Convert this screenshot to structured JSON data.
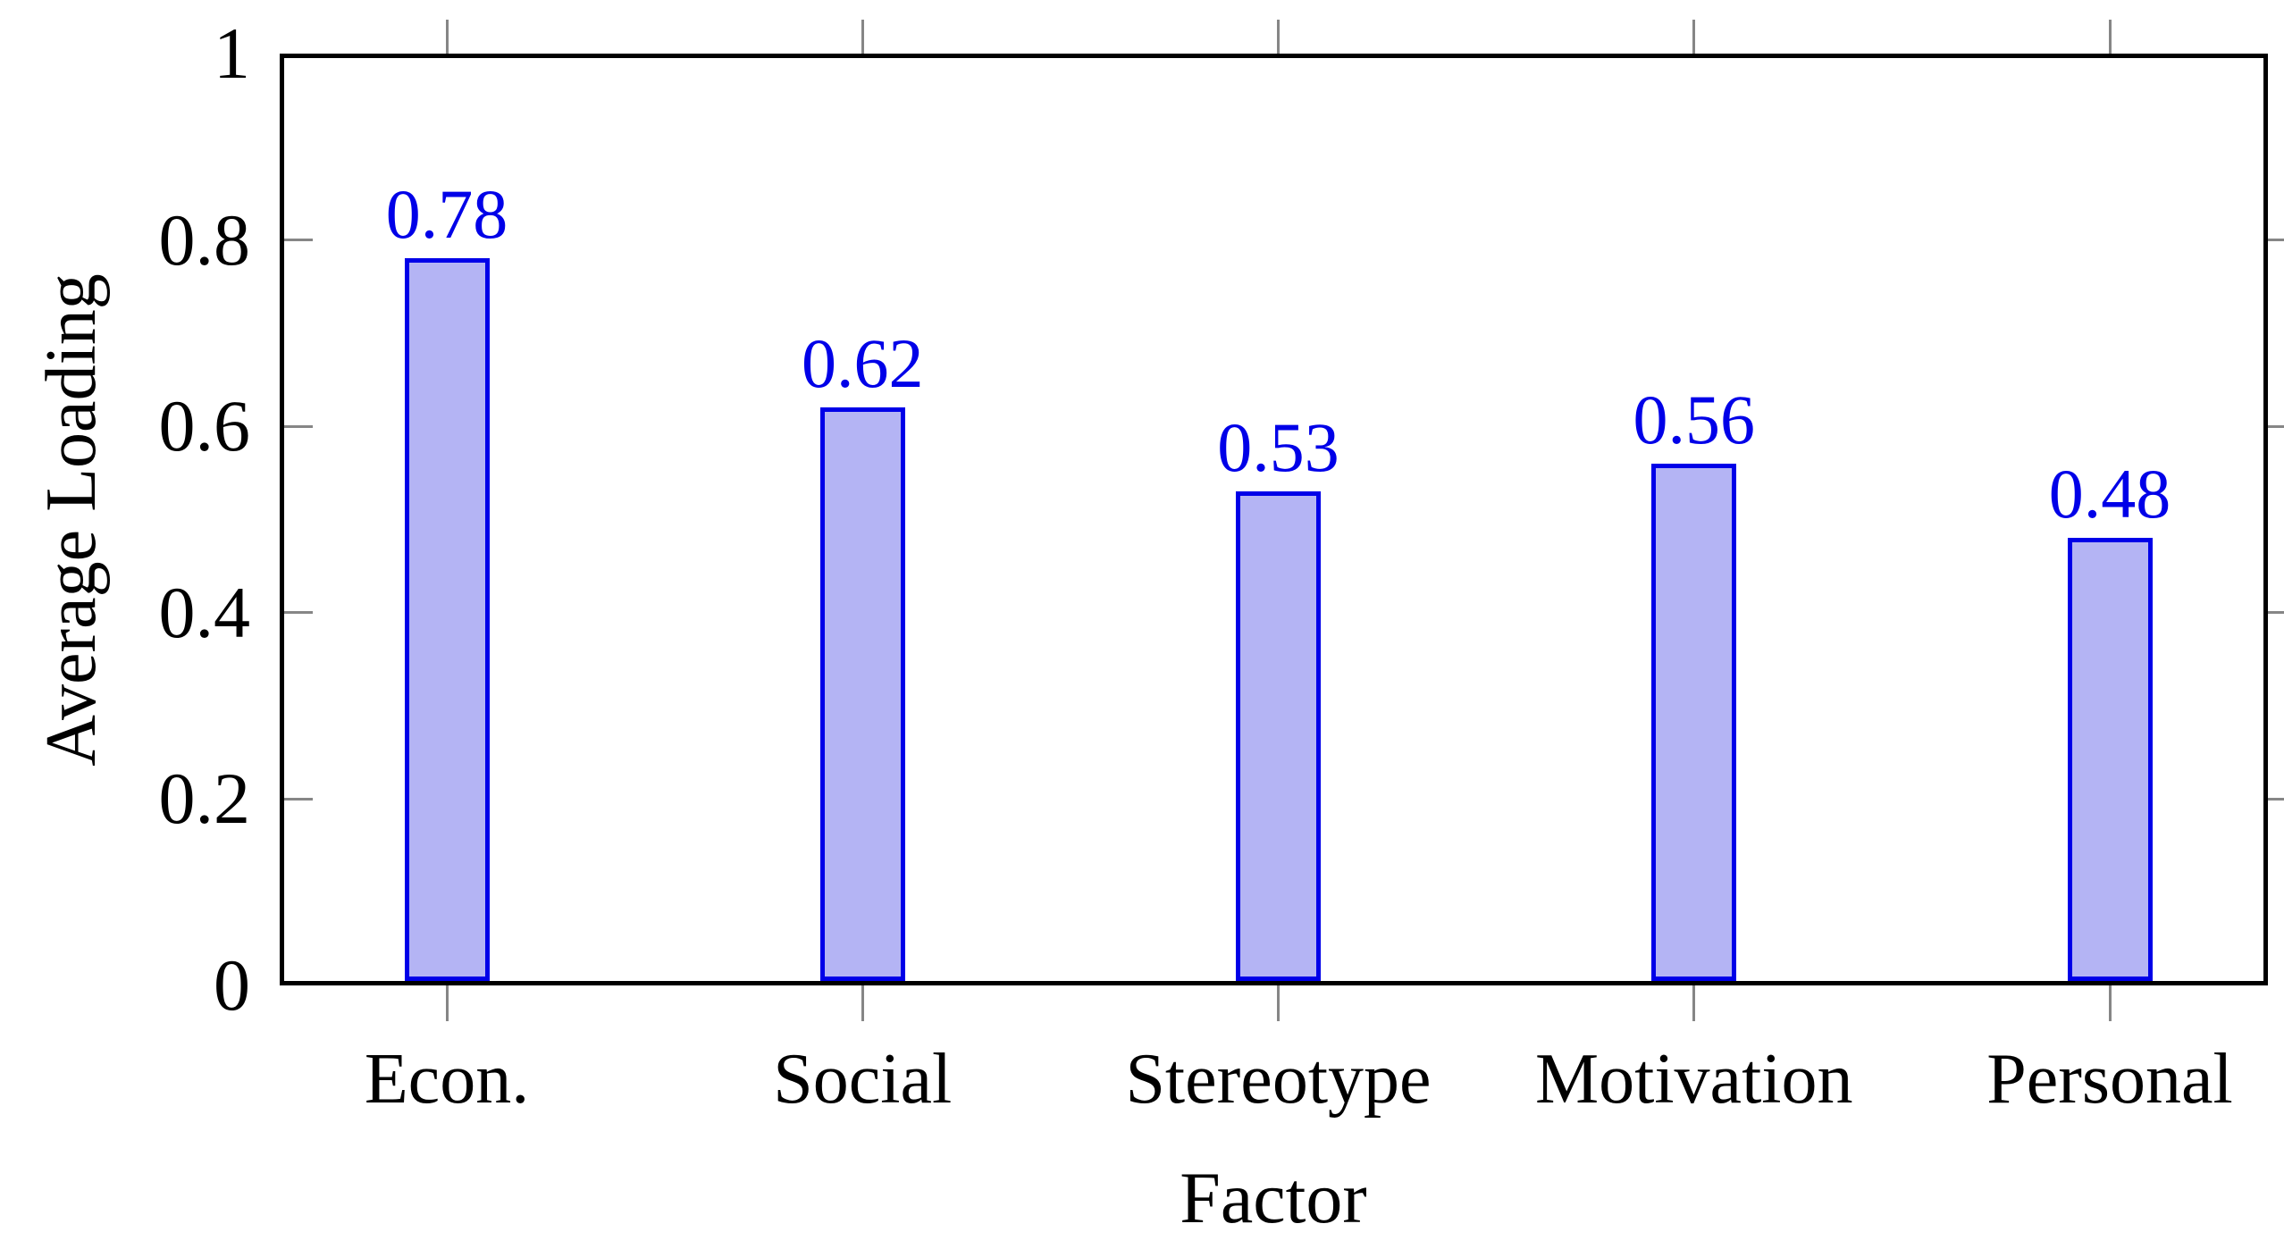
{
  "chart_data": {
    "type": "bar",
    "title": "",
    "xlabel": "Factor",
    "ylabel": "Average Loading",
    "categories": [
      "Econ.",
      "Social",
      "Stereotype",
      "Motivation",
      "Personal"
    ],
    "values": [
      0.78,
      0.62,
      0.53,
      0.56,
      0.48
    ],
    "value_labels": [
      "0.78",
      "0.62",
      "0.53",
      "0.56",
      "0.48"
    ],
    "ylim": [
      0,
      1
    ],
    "yticks": [
      0,
      0.2,
      0.4,
      0.6,
      0.8,
      1
    ],
    "ytick_labels": [
      "0",
      "0.2",
      "0.4",
      "0.6",
      "0.8",
      "1"
    ],
    "grid": false,
    "legend": null,
    "colors": {
      "bar_fill": "#b4b4f4",
      "bar_border": "#0000e8",
      "value_label": "#0000e8",
      "axis": "#000000",
      "tick": "#868686",
      "text": "#000000",
      "background": "#ffffff"
    }
  }
}
